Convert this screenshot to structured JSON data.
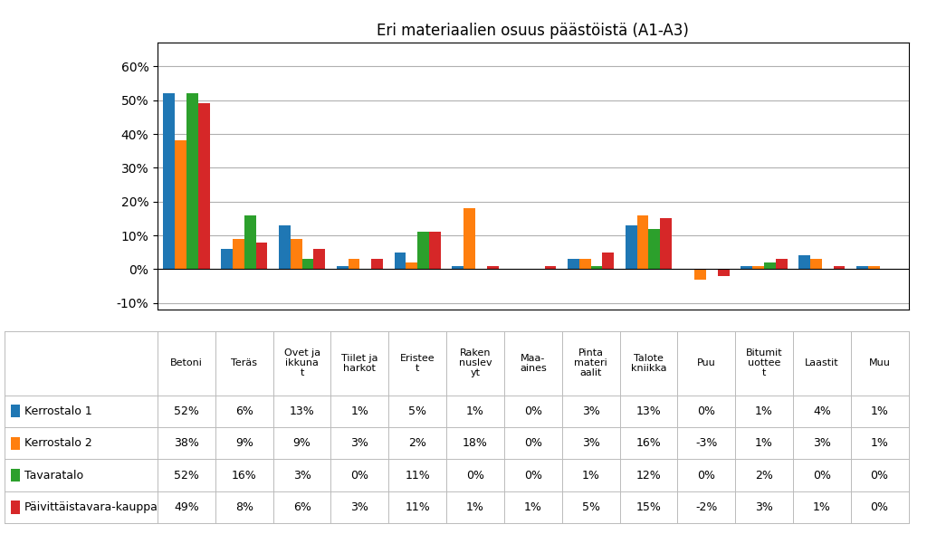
{
  "chart_data": {
    "type": "bar",
    "title": "Eri materiaalien osuus päästöistä (A1-A3)",
    "categories": [
      "Betoni",
      "Teräs",
      "Ovet ja\nikkuna\nt",
      "Tiilet ja\nharkot",
      "Eristee\nt",
      "Raken\nnuslev\nyt",
      "Maa-\naines",
      "Pinta\nmateri\naalit",
      "Talote\nkniikka",
      "Puu",
      "Bitumit\nuottee\nt",
      "Laastit",
      "Muu"
    ],
    "series": [
      {
        "name": "Kerrostalo 1",
        "values": [
          52,
          6,
          13,
          1,
          5,
          1,
          0,
          3,
          13,
          0,
          1,
          4,
          1
        ],
        "value_labels": [
          "52%",
          "6%",
          "13%",
          "1%",
          "5%",
          "1%",
          "0%",
          "3%",
          "13%",
          "0%",
          "1%",
          "4%",
          "1%"
        ]
      },
      {
        "name": "Kerrostalo 2",
        "values": [
          38,
          9,
          9,
          3,
          2,
          18,
          0,
          3,
          16,
          -3,
          1,
          3,
          1
        ],
        "value_labels": [
          "38%",
          "9%",
          "9%",
          "3%",
          "2%",
          "18%",
          "0%",
          "3%",
          "16%",
          "-3%",
          "1%",
          "3%",
          "1%"
        ]
      },
      {
        "name": "Tavaratalo",
        "values": [
          52,
          16,
          3,
          0,
          11,
          0,
          0,
          1,
          12,
          0,
          2,
          0,
          0
        ],
        "value_labels": [
          "52%",
          "16%",
          "3%",
          "0%",
          "11%",
          "0%",
          "0%",
          "1%",
          "12%",
          "0%",
          "2%",
          "0%",
          "0%"
        ]
      },
      {
        "name": "Päivittäistavara-kauppa",
        "values": [
          49,
          8,
          6,
          3,
          11,
          1,
          1,
          5,
          15,
          -2,
          3,
          1,
          0
        ],
        "value_labels": [
          "49%",
          "8%",
          "6%",
          "3%",
          "11%",
          "1%",
          "1%",
          "5%",
          "15%",
          "-2%",
          "3%",
          "1%",
          "0%"
        ]
      }
    ],
    "ylim": [
      -12,
      67
    ],
    "yticks": [
      {
        "value": -10,
        "label": "-10%"
      },
      {
        "value": 0,
        "label": "0%"
      },
      {
        "value": 10,
        "label": "10%"
      },
      {
        "value": 20,
        "label": "20%"
      },
      {
        "value": 30,
        "label": "30%"
      },
      {
        "value": 40,
        "label": "40%"
      },
      {
        "value": 50,
        "label": "50%"
      },
      {
        "value": 60,
        "label": "60%"
      }
    ],
    "grid": true,
    "tick_labels": "y"
  }
}
